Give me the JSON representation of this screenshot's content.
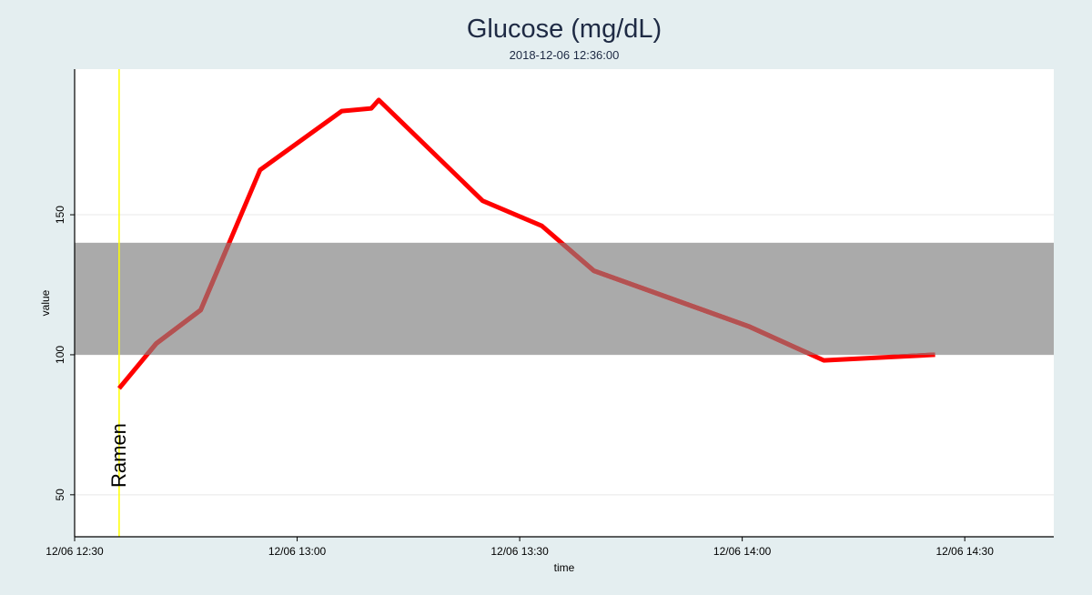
{
  "chart_data": {
    "type": "line",
    "title": "Glucose (mg/dL)",
    "subtitle": "2018-12-06 12:36:00",
    "xlabel": "time",
    "ylabel": "value",
    "x_tick_labels": [
      "12/06 12:30",
      "12/06 13:00",
      "12/06 13:30",
      "12/06 14:00",
      "12/06 14:30"
    ],
    "x_ticks": [
      "2018-12-06 12:30",
      "2018-12-06 13:00",
      "2018-12-06 13:30",
      "2018-12-06 14:00",
      "2018-12-06 14:30"
    ],
    "xlim": [
      "2018-12-06 12:30",
      "2018-12-06 14:42"
    ],
    "y_ticks": [
      50,
      100,
      150
    ],
    "ylim": [
      35,
      202
    ],
    "grid": true,
    "target_range": {
      "low": 100,
      "high": 140,
      "color": "#aaaaaa"
    },
    "annotation": {
      "label": "Ramen",
      "x": "2018-12-06 12:36",
      "color": "#ffff00"
    },
    "series": [
      {
        "color": "#ff0000",
        "points": [
          {
            "x": "2018-12-06 12:36",
            "y": 88
          },
          {
            "x": "2018-12-06 12:41",
            "y": 104
          },
          {
            "x": "2018-12-06 12:47",
            "y": 116
          },
          {
            "x": "2018-12-06 12:55",
            "y": 166
          },
          {
            "x": "2018-12-06 13:06",
            "y": 187
          },
          {
            "x": "2018-12-06 13:10",
            "y": 188
          },
          {
            "x": "2018-12-06 13:11",
            "y": 191
          },
          {
            "x": "2018-12-06 13:25",
            "y": 155
          },
          {
            "x": "2018-12-06 13:33",
            "y": 146
          },
          {
            "x": "2018-12-06 13:40",
            "y": 130
          },
          {
            "x": "2018-12-06 14:01",
            "y": 110
          },
          {
            "x": "2018-12-06 14:11",
            "y": 98
          },
          {
            "x": "2018-12-06 14:26",
            "y": 100
          }
        ]
      }
    ]
  }
}
